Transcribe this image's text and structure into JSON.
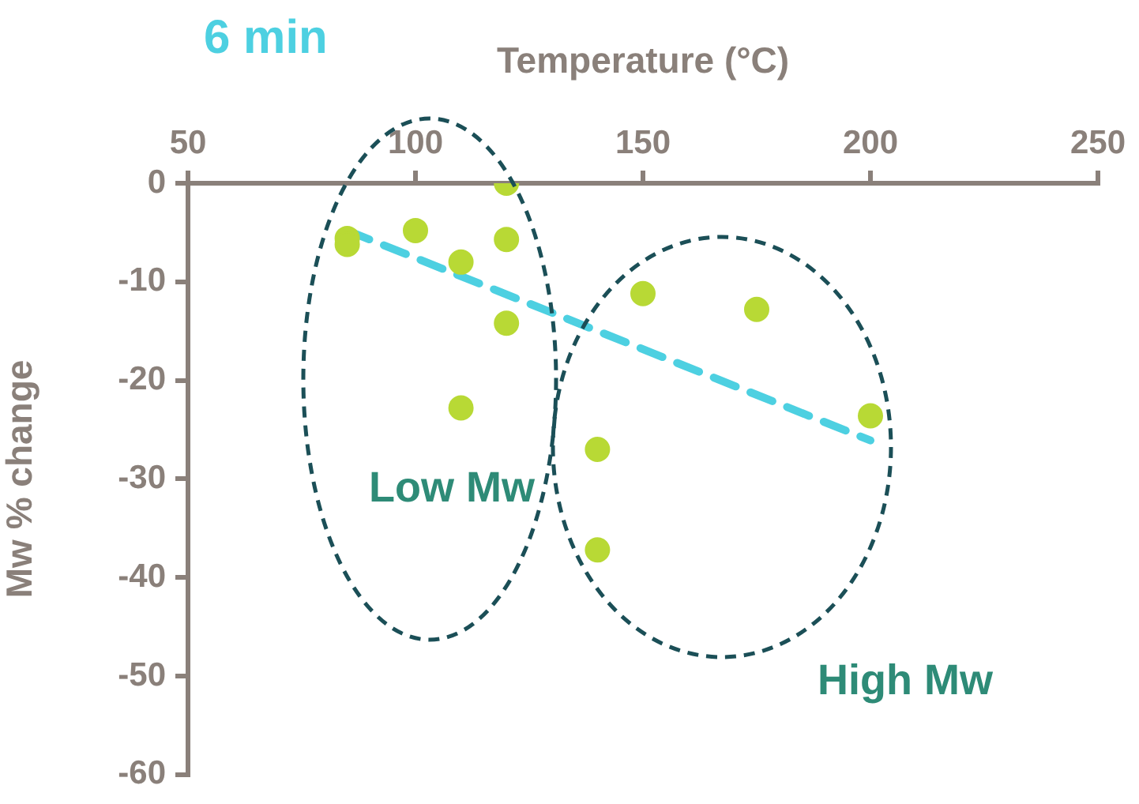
{
  "chart_data": {
    "type": "scatter",
    "title": "6 min",
    "xlabel": "Temperature (°C)",
    "ylabel": "Mw % change",
    "xlim": [
      50,
      250
    ],
    "xticks": [
      50,
      100,
      150,
      200,
      250
    ],
    "ylim": [
      -60,
      0
    ],
    "yticks": [
      -60,
      -50,
      -40,
      -30,
      -20,
      -10,
      0
    ],
    "series": [
      {
        "color": "#b8d935",
        "x": [
          85,
          85,
          100,
          110,
          120,
          120,
          120,
          110,
          140,
          140,
          150,
          175,
          200
        ],
        "values": [
          -5.6,
          -6.2,
          -4.8,
          -8.0,
          0,
          -5.7,
          -14.2,
          -22.8,
          -27.0,
          -37.2,
          -11.2,
          -12.8,
          -23.6
        ]
      },
      {
        "type": "line",
        "color": "#4dd0e1",
        "line_style": "dashed",
        "marker": "none",
        "x": [
          85,
          200
        ],
        "values": [
          -4.8,
          -26.1
        ]
      }
    ],
    "marker": "circle",
    "grid": false,
    "legend": false,
    "annotations": [
      "Low Mw",
      "High Mw"
    ]
  }
}
